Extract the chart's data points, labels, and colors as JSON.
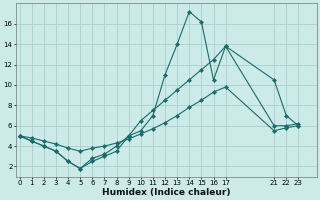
{
  "xlabel": "Humidex (Indice chaleur)",
  "background_color": "#cceae8",
  "grid_color": "#aacfcd",
  "line_color": "#1a6b6b",
  "line1_x": [
    0,
    1,
    2,
    3,
    4,
    5,
    6,
    7,
    8,
    9,
    10,
    11,
    12,
    13,
    14,
    15,
    16,
    17,
    21,
    22,
    23
  ],
  "line1_y": [
    5.0,
    4.5,
    4.0,
    3.5,
    2.5,
    1.8,
    2.5,
    3.0,
    3.5,
    5.0,
    5.5,
    7.0,
    11.0,
    14.0,
    17.2,
    16.2,
    10.5,
    13.8,
    10.5,
    7.0,
    6.0
  ],
  "line2_x": [
    0,
    1,
    2,
    3,
    4,
    5,
    6,
    7,
    8,
    9,
    10,
    11,
    12,
    13,
    14,
    15,
    16,
    17,
    21,
    22,
    23
  ],
  "line2_y": [
    5.0,
    4.5,
    4.0,
    3.5,
    2.5,
    1.8,
    2.8,
    3.2,
    4.0,
    5.0,
    6.5,
    7.5,
    8.5,
    9.5,
    10.5,
    11.5,
    12.5,
    13.8,
    6.0,
    6.0,
    6.2
  ],
  "line3_x": [
    0,
    1,
    2,
    3,
    4,
    5,
    6,
    7,
    8,
    9,
    10,
    11,
    12,
    13,
    14,
    15,
    16,
    17,
    21,
    22,
    23
  ],
  "line3_y": [
    5.0,
    4.8,
    4.5,
    4.2,
    3.8,
    3.5,
    3.8,
    4.0,
    4.3,
    4.7,
    5.2,
    5.7,
    6.3,
    7.0,
    7.8,
    8.5,
    9.3,
    9.8,
    5.5,
    5.8,
    6.0
  ],
  "ylim": [
    1,
    18
  ],
  "xlim": [
    -0.3,
    24.5
  ],
  "yticks": [
    2,
    4,
    6,
    8,
    10,
    12,
    14,
    16
  ],
  "xticks_pos": [
    0,
    1,
    2,
    3,
    4,
    5,
    6,
    7,
    8,
    9,
    10,
    11,
    12,
    13,
    14,
    15,
    16,
    17,
    21,
    22,
    23
  ],
  "xtick_labels": [
    "0",
    "1",
    "2",
    "3",
    "4",
    "5",
    "6",
    "7",
    "8",
    "9",
    "10",
    "11",
    "12",
    "13",
    "14",
    "15",
    "16",
    "17",
    "21",
    "22",
    "23"
  ],
  "marker": "D",
  "marker_size": 2.2,
  "linewidth": 0.8,
  "tick_fontsize": 5.0,
  "xlabel_fontsize": 6.5
}
